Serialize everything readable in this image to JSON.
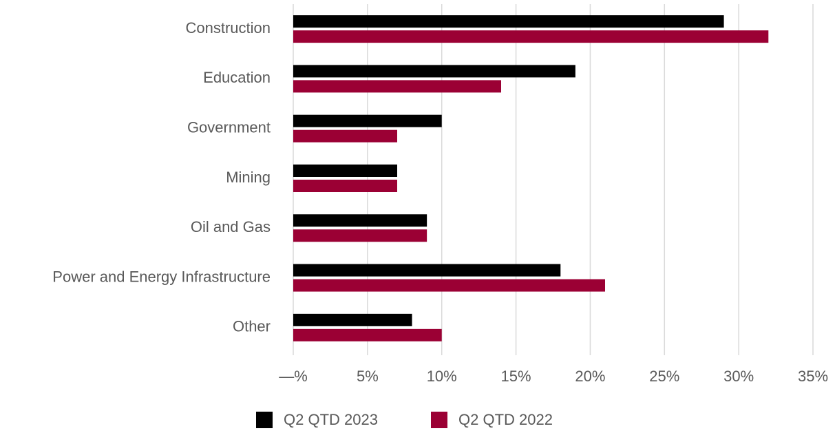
{
  "chart_data": {
    "type": "bar",
    "orientation": "horizontal",
    "categories": [
      "Construction",
      "Education",
      "Government",
      "Mining",
      "Oil and Gas",
      "Power and Energy Infrastructure",
      "Other"
    ],
    "series": [
      {
        "name": "Q2 QTD 2023",
        "color": "#000000",
        "values": [
          29,
          19,
          10,
          7,
          9,
          18,
          8
        ]
      },
      {
        "name": "Q2 QTD 2022",
        "color": "#9b0034",
        "values": [
          32,
          14,
          7,
          7,
          9,
          21,
          10
        ]
      }
    ],
    "xlim": [
      0,
      35
    ],
    "xticks": [
      {
        "value": 0,
        "label": "—%"
      },
      {
        "value": 5,
        "label": "5%"
      },
      {
        "value": 10,
        "label": "10%"
      },
      {
        "value": 15,
        "label": "15%"
      },
      {
        "value": 20,
        "label": "20%"
      },
      {
        "value": 25,
        "label": "25%"
      },
      {
        "value": 30,
        "label": "30%"
      },
      {
        "value": 35,
        "label": "35%"
      }
    ],
    "grid": true,
    "legend": "bottom"
  }
}
